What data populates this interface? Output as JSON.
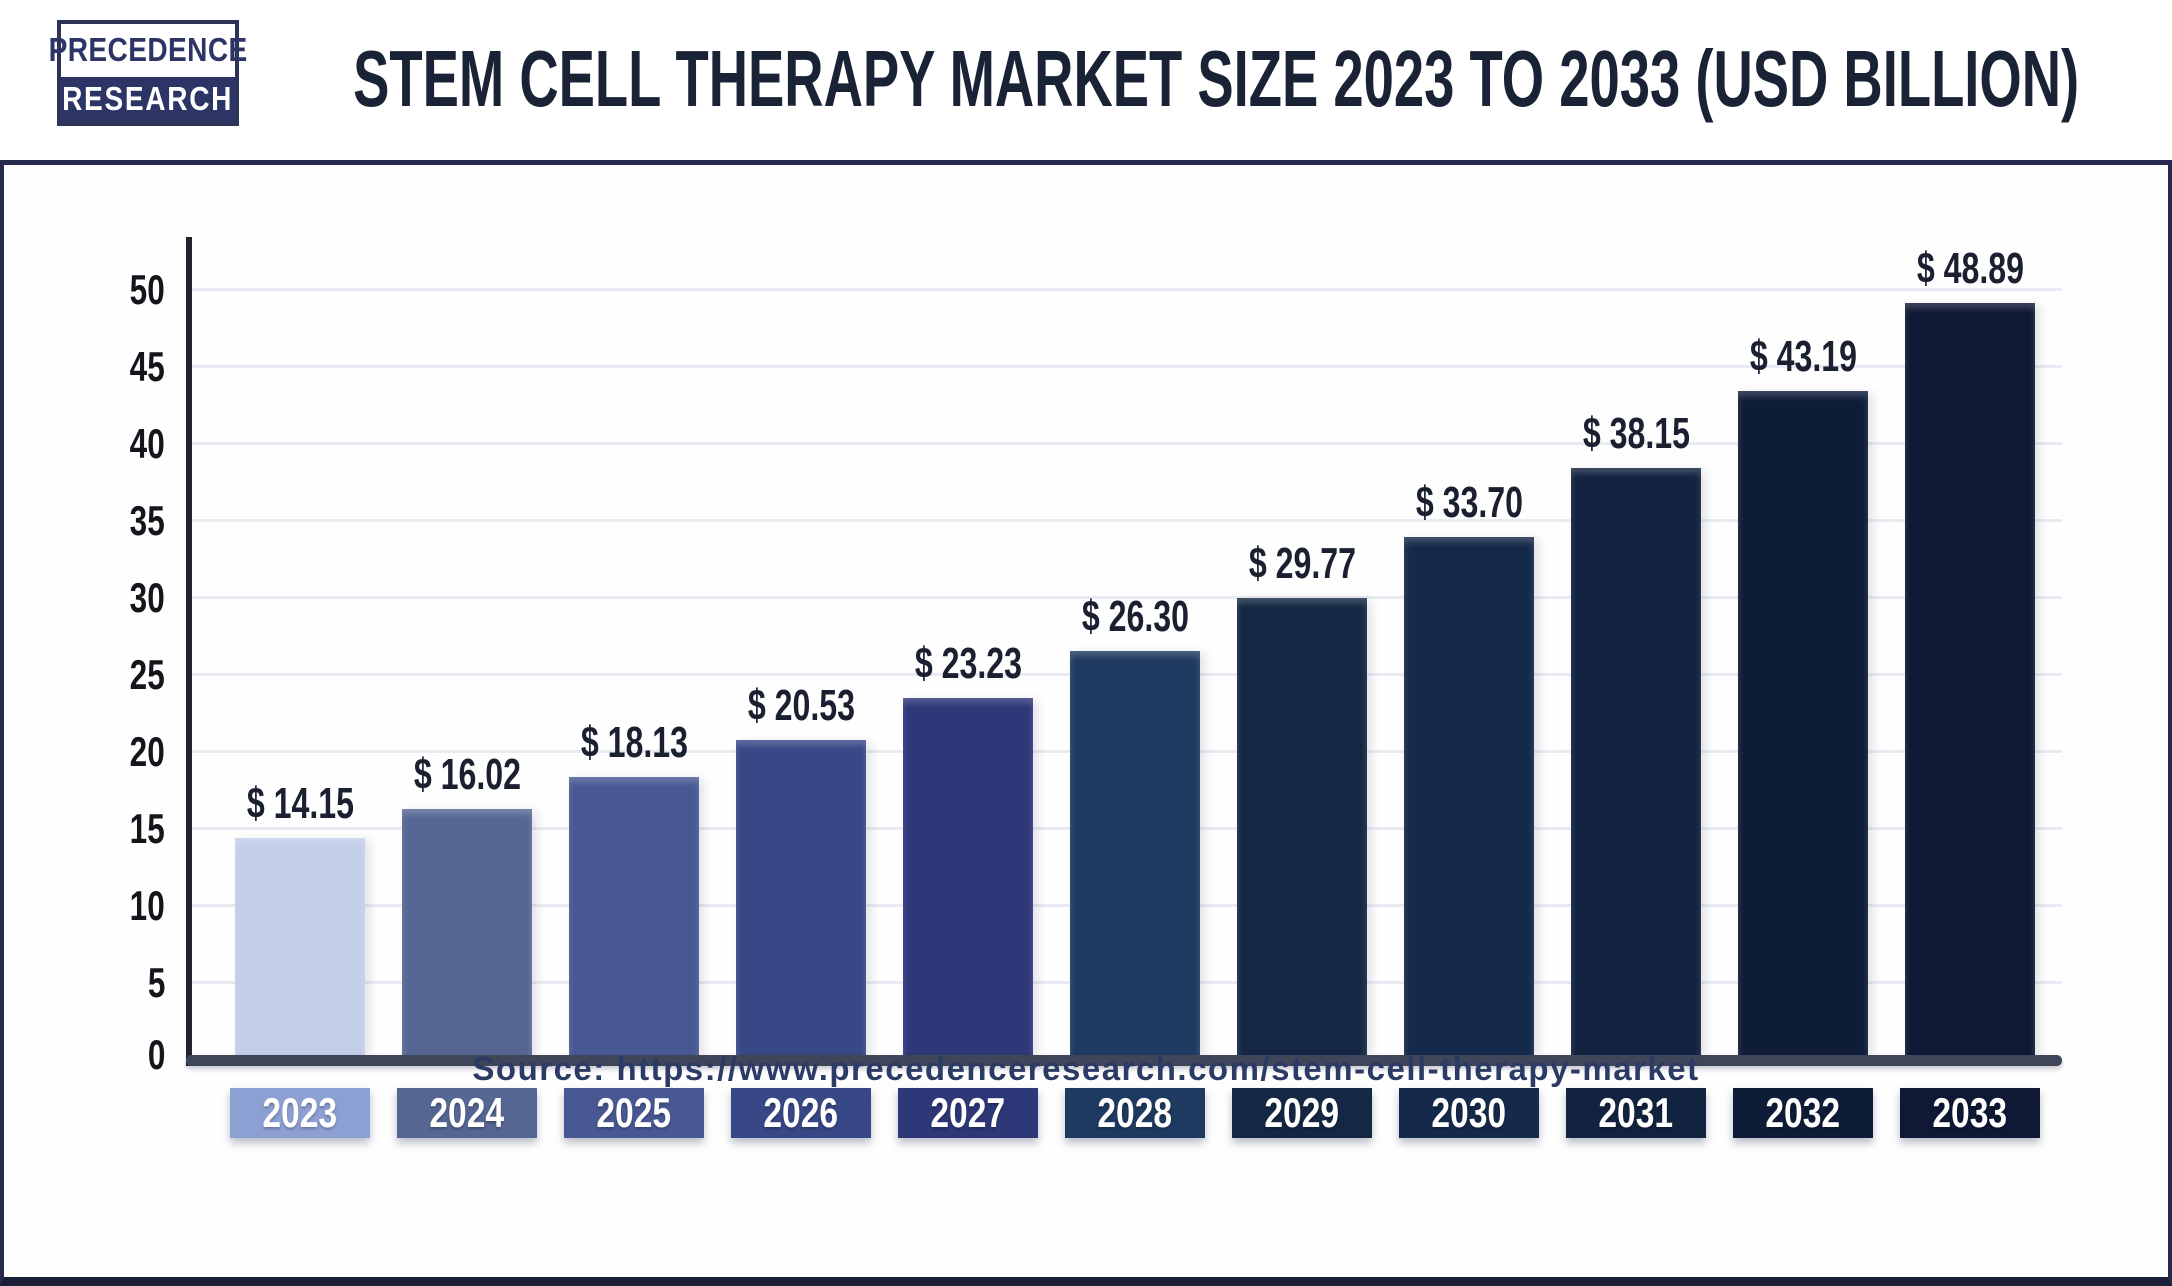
{
  "header": {
    "logo_line1": "PRECEDENCE",
    "logo_line2": "RESEARCH",
    "title": "STEM CELL THERAPY MARKET SIZE 2023 TO 2033 (USD BILLION)"
  },
  "chart_data": {
    "type": "bar",
    "title": "Stem Cell Therapy Market Size 2023 to 2033 (USD Billion)",
    "categories": [
      "2023",
      "2024",
      "2025",
      "2026",
      "2027",
      "2028",
      "2029",
      "2030",
      "2031",
      "2032",
      "2033"
    ],
    "values": [
      14.15,
      16.02,
      18.13,
      20.53,
      23.23,
      26.3,
      29.77,
      33.7,
      38.15,
      43.19,
      48.89
    ],
    "value_prefix": "$ ",
    "xlabel": "",
    "ylabel": "",
    "ylim": [
      0,
      50
    ],
    "yticks": [
      0,
      5,
      10,
      15,
      20,
      25,
      30,
      35,
      40,
      45,
      50
    ],
    "grid": true,
    "legend": "none",
    "bar_colors": [
      "#c3cee9",
      "#566693",
      "#485893",
      "#384887",
      "#2e3778",
      "#1f3a60",
      "#142844",
      "#15294a",
      "#12233f",
      "#0e1c38",
      "#0f1834"
    ],
    "tick_box_colors": [
      "#8da0d3",
      "#566693",
      "#485893",
      "#384887",
      "#2e3778",
      "#1f3a60",
      "#142844",
      "#15294a",
      "#12233f",
      "#0e1c38",
      "#0f1834"
    ],
    "colors": {
      "axis": "#20242f",
      "baseline": "#40465a",
      "gridline": "#e9ebf2",
      "value_label": "#1a2030",
      "tick_label": "#14161c",
      "frame": "#262a4e",
      "title": "#1a2336",
      "logo_navy": "#2d3566"
    }
  },
  "footer": {
    "source": "Source: https://www.precedenceresearch.com/stem-cell-therapy-market"
  }
}
